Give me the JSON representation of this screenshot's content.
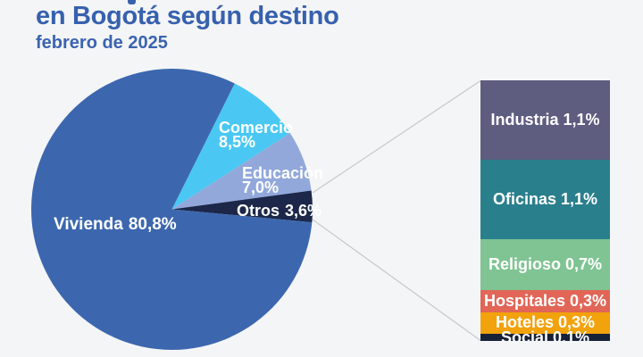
{
  "page": {
    "background_color": "#F4F5F6"
  },
  "header": {
    "title": "en Bogotá según destino",
    "subtitle": "febrero de 2025",
    "text_color": "#3761AE",
    "note": "first title line cut off at top of screenshot"
  },
  "chart_data": {
    "type": "pie",
    "title": "en Bogotá según destino",
    "subtitle": "febrero de 2025",
    "value_unit": "%",
    "decimal_style": "comma",
    "grid": false,
    "legend_position": "labels-on-slices",
    "pie": {
      "start_angle_deg": 26.5,
      "slices": [
        {
          "label": "Comercio",
          "value": 8.5,
          "value_label": "8,5%",
          "color": "#4AC8F3"
        },
        {
          "label": "Educación",
          "value": 7.0,
          "value_label": "7,0%",
          "color": "#92A8DB"
        },
        {
          "label": "Otros",
          "value": 3.6,
          "value_label": "3,6%",
          "color": "#1C2749"
        },
        {
          "label": "Vivienda",
          "value": 80.8,
          "value_label": "80,8%",
          "color": "#3C67AF"
        }
      ]
    },
    "detail_bar": {
      "expands_slice": "Otros",
      "segments": [
        {
          "label": "Industria",
          "value": 1.1,
          "value_label": "1,1%",
          "color": "#5E5C7F"
        },
        {
          "label": "Oficinas",
          "value": 1.1,
          "value_label": "1,1%",
          "color": "#2A7F8C"
        },
        {
          "label": "Religioso",
          "value": 0.7,
          "value_label": "0,7%",
          "color": "#7FC492"
        },
        {
          "label": "Hospitales",
          "value": 0.3,
          "value_label": "0,3%",
          "color": "#E16657"
        },
        {
          "label": "Hoteles",
          "value": 0.3,
          "value_label": "0,3%",
          "color": "#F2A20C"
        },
        {
          "label": "Social",
          "value": 0.1,
          "value_label": "0,1%",
          "color": "#172138"
        }
      ]
    },
    "connector_color": "#C7C8CC"
  }
}
